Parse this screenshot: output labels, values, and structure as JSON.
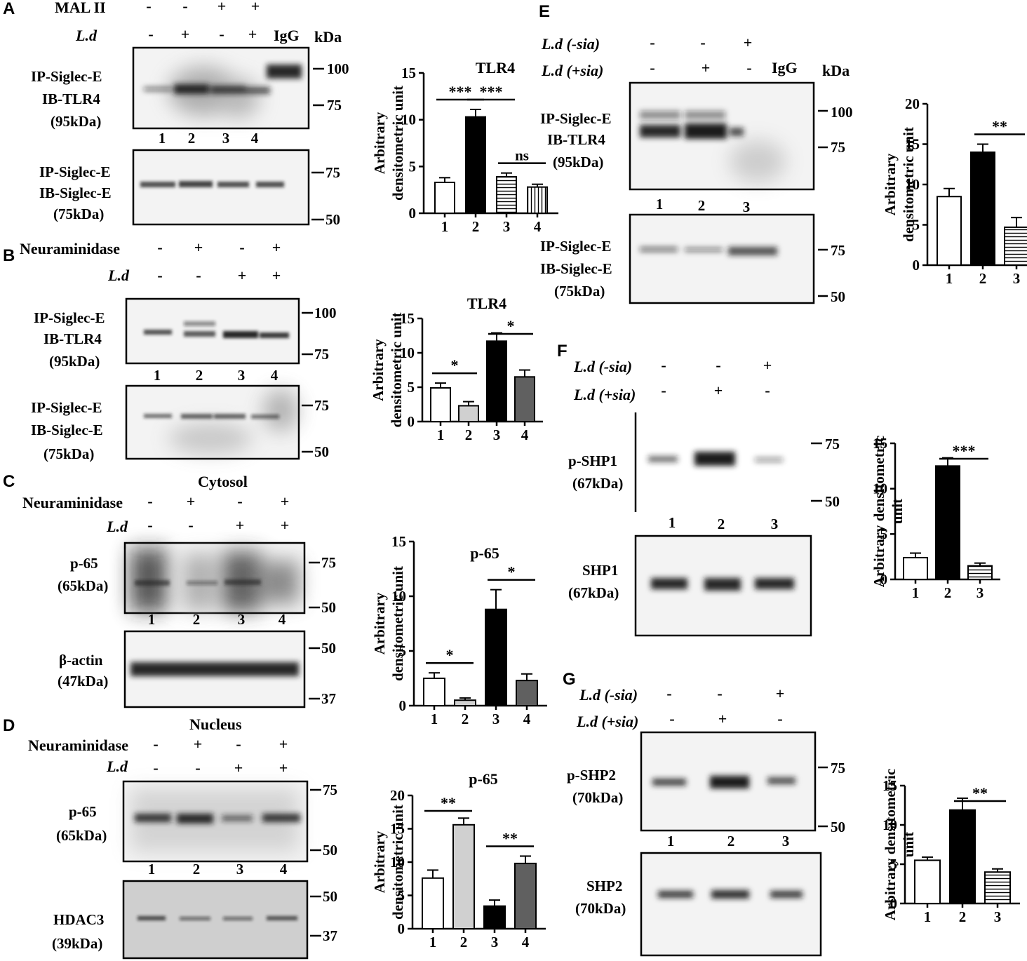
{
  "panels": {
    "A": {
      "letter": "A",
      "treat1_label": "MAL II",
      "treat1_signs": [
        "-",
        "-",
        "+",
        "+"
      ],
      "treat2_label": "L.d",
      "treat2_signs": [
        "-",
        "+",
        "-",
        "+"
      ],
      "igg": "IgG",
      "kda": "kDa",
      "blot1": {
        "label": [
          "IP-Siglec-E",
          "IB-TLR4",
          "(95kDa)"
        ],
        "markers": [
          "100",
          "75"
        ],
        "lanes": [
          "1",
          "2",
          "3",
          "4"
        ]
      },
      "blot2": {
        "label": [
          "IP-Siglec-E",
          "IB-Siglec-E",
          "(75kDa)"
        ],
        "markers": [
          "75",
          "50"
        ]
      }
    },
    "B": {
      "letter": "B",
      "treat1_label": "Neuraminidase",
      "treat1_signs": [
        "-",
        "+",
        "-",
        "+"
      ],
      "treat2_label": "L.d",
      "treat2_signs": [
        "-",
        "-",
        "+",
        "+"
      ],
      "blot1": {
        "label": [
          "IP-Siglec-E",
          "IB-TLR4",
          "(95kDa)"
        ],
        "markers": [
          "100",
          "75"
        ],
        "lanes": [
          "1",
          "2",
          "3",
          "4"
        ]
      },
      "blot2": {
        "label": [
          "IP-Siglec-E",
          "IB-Siglec-E",
          "(75kDa)"
        ],
        "markers": [
          "75",
          "50"
        ]
      }
    },
    "C": {
      "letter": "C",
      "title": "Cytosol",
      "treat1_label": "Neuraminidase",
      "treat1_signs": [
        "-",
        "+",
        "-",
        "+"
      ],
      "treat2_label": "L.d",
      "treat2_signs": [
        "-",
        "-",
        "+",
        "+"
      ],
      "blot1": {
        "label": [
          "p-65",
          "(65kDa)"
        ],
        "markers": [
          "75",
          "50"
        ],
        "lanes": [
          "1",
          "2",
          "3",
          "4"
        ]
      },
      "blot2": {
        "label": [
          "β-actin",
          "(47kDa)"
        ],
        "markers": [
          "50",
          "37"
        ]
      }
    },
    "D": {
      "letter": "D",
      "title": "Nucleus",
      "treat1_label": "Neuraminidase",
      "treat1_signs": [
        "-",
        "+",
        "-",
        "+"
      ],
      "treat2_label": "L.d",
      "treat2_signs": [
        "-",
        "-",
        "+",
        "+"
      ],
      "blot1": {
        "label": [
          "p-65",
          "(65kDa)"
        ],
        "markers": [
          "75",
          "50"
        ],
        "lanes": [
          "1",
          "2",
          "3",
          "4"
        ]
      },
      "blot2": {
        "label": [
          "HDAC3",
          "(39kDa)"
        ],
        "markers": [
          "50",
          "37"
        ]
      }
    },
    "E": {
      "letter": "E",
      "treat1_label": "L.d (-sia)",
      "treat1_signs": [
        "-",
        "-",
        "+"
      ],
      "treat2_label": "L.d (+sia)",
      "treat2_signs": [
        "-",
        "+",
        "-"
      ],
      "igg": "IgG",
      "kda": "kDa",
      "blot1": {
        "label": [
          "IP-Siglec-E",
          "IB-TLR4",
          "(95kDa)"
        ],
        "markers": [
          "100",
          "75"
        ],
        "lanes": [
          "1",
          "2",
          "3"
        ]
      },
      "blot2": {
        "label": [
          "IP-Siglec-E",
          "IB-Siglec-E",
          "(75kDa)"
        ],
        "markers": [
          "75",
          "50"
        ]
      }
    },
    "F": {
      "letter": "F",
      "treat1_label": "L.d (-sia)",
      "treat1_signs": [
        "-",
        "-",
        "+"
      ],
      "treat2_label": "L.d (+sia)",
      "treat2_signs": [
        "-",
        "+",
        "-"
      ],
      "blot1": {
        "label": [
          "p-SHP1",
          "(67kDa)"
        ],
        "markers": [
          "75",
          "50"
        ],
        "lanes": [
          "1",
          "2",
          "3"
        ]
      },
      "blot2": {
        "label": [
          "SHP1",
          "(67kDa)"
        ],
        "markers": []
      }
    },
    "G": {
      "letter": "G",
      "treat1_label": "L.d (-sia)",
      "treat1_signs": [
        "-",
        "-",
        "+"
      ],
      "treat2_label": "L.d (+sia)",
      "treat2_signs": [
        "-",
        "+",
        "-"
      ],
      "blot1": {
        "label": [
          "p-SHP2",
          "(70kDa)"
        ],
        "markers": [
          "75",
          "50"
        ],
        "lanes": [
          "1",
          "2",
          "3"
        ]
      },
      "blot2": {
        "label": [
          "SHP2",
          "(70kDa)"
        ],
        "markers": []
      }
    }
  },
  "chart_data": [
    {
      "id": "A",
      "type": "bar",
      "title": "TLR4",
      "ylabel": [
        "Arbitrary",
        "densitometric unit"
      ],
      "categories": [
        "1",
        "2",
        "3",
        "4"
      ],
      "values": [
        3.3,
        10.3,
        3.9,
        2.8
      ],
      "errors": [
        0.5,
        0.8,
        0.4,
        0.3
      ],
      "ylim": [
        0,
        15
      ],
      "yticks": [
        "0",
        "5",
        "10",
        "15"
      ],
      "fills": [
        "white",
        "black",
        "hstripe",
        "vstripe"
      ],
      "sig": [
        {
          "from": 0,
          "to": 1,
          "label": "***"
        },
        {
          "from": 1,
          "to": 2,
          "label": "***"
        },
        {
          "from": 2,
          "to": 3,
          "label": "ns"
        }
      ]
    },
    {
      "id": "B",
      "type": "bar",
      "title": "TLR4",
      "ylabel": [
        "Arbitrary",
        "densitometric unit"
      ],
      "categories": [
        "1",
        "2",
        "3",
        "4"
      ],
      "values": [
        4.9,
        2.3,
        11.7,
        6.5
      ],
      "errors": [
        0.7,
        0.6,
        1.2,
        1.0
      ],
      "ylim": [
        0,
        15
      ],
      "yticks": [
        "0",
        "5",
        "10",
        "15"
      ],
      "fills": [
        "white",
        "#d0d0d0",
        "black",
        "#606060"
      ],
      "sig": [
        {
          "from": 0,
          "to": 1,
          "label": "*"
        },
        {
          "from": 2,
          "to": 3,
          "label": "*"
        }
      ]
    },
    {
      "id": "C",
      "type": "bar",
      "title": "p-65",
      "ylabel": [
        "Arbitrary",
        "densitometric unit"
      ],
      "categories": [
        "1",
        "2",
        "3",
        "4"
      ],
      "values": [
        2.5,
        0.5,
        8.8,
        2.3
      ],
      "errors": [
        0.5,
        0.2,
        1.8,
        0.6
      ],
      "ylim": [
        0,
        15
      ],
      "yticks": [
        "0",
        "5",
        "10",
        "15"
      ],
      "fills": [
        "white",
        "#d0d0d0",
        "black",
        "#606060"
      ],
      "sig": [
        {
          "from": 0,
          "to": 1,
          "label": "*"
        },
        {
          "from": 2,
          "to": 3,
          "label": "*"
        }
      ]
    },
    {
      "id": "D",
      "type": "bar",
      "title": "p-65",
      "ylabel": [
        "Arbitrary",
        "densitometric unit"
      ],
      "categories": [
        "1",
        "2",
        "3",
        "4"
      ],
      "values": [
        7.6,
        15.6,
        3.4,
        9.8
      ],
      "errors": [
        1.2,
        1.0,
        0.9,
        1.1
      ],
      "ylim": [
        0,
        20
      ],
      "yticks": [
        "0",
        "5",
        "10",
        "15",
        "20"
      ],
      "fills": [
        "white",
        "#d0d0d0",
        "black",
        "#606060"
      ],
      "sig": [
        {
          "from": 0,
          "to": 1,
          "label": "**"
        },
        {
          "from": 2,
          "to": 3,
          "label": "**"
        }
      ]
    },
    {
      "id": "E",
      "type": "bar",
      "ylabel": [
        "Arbitrary",
        "densitometric unit"
      ],
      "categories": [
        "1",
        "2",
        "3"
      ],
      "values": [
        8.5,
        14.0,
        4.7
      ],
      "errors": [
        1.0,
        1.0,
        1.2
      ],
      "ylim": [
        0,
        20
      ],
      "yticks": [
        "0",
        "5",
        "10",
        "15",
        "20"
      ],
      "fills": [
        "white",
        "black",
        "hstripe"
      ],
      "sig": [
        {
          "from": 1,
          "to": 2,
          "label": "**"
        }
      ]
    },
    {
      "id": "F",
      "type": "bar",
      "ylabel": [
        "Arbitrary densitometric",
        "unit"
      ],
      "categories": [
        "1",
        "2",
        "3"
      ],
      "values": [
        2.4,
        12.5,
        1.5
      ],
      "errors": [
        0.5,
        0.9,
        0.3
      ],
      "ylim": [
        0,
        15
      ],
      "yticks": [
        "0",
        "5",
        "10",
        "15"
      ],
      "fills": [
        "white",
        "black",
        "hstripe"
      ],
      "sig": [
        {
          "from": 1,
          "to": 2,
          "label": "***"
        }
      ]
    },
    {
      "id": "G",
      "type": "bar",
      "ylabel": [
        "Arbitrary densitometric",
        "unit"
      ],
      "categories": [
        "1",
        "2",
        "3"
      ],
      "values": [
        5.5,
        11.9,
        4.0
      ],
      "errors": [
        0.4,
        1.5,
        0.4
      ],
      "ylim": [
        0,
        15
      ],
      "yticks": [
        "0",
        "5",
        "10",
        "15"
      ],
      "fills": [
        "white",
        "black",
        "hstripe"
      ],
      "sig": [
        {
          "from": 1,
          "to": 2,
          "label": "**"
        }
      ]
    }
  ]
}
